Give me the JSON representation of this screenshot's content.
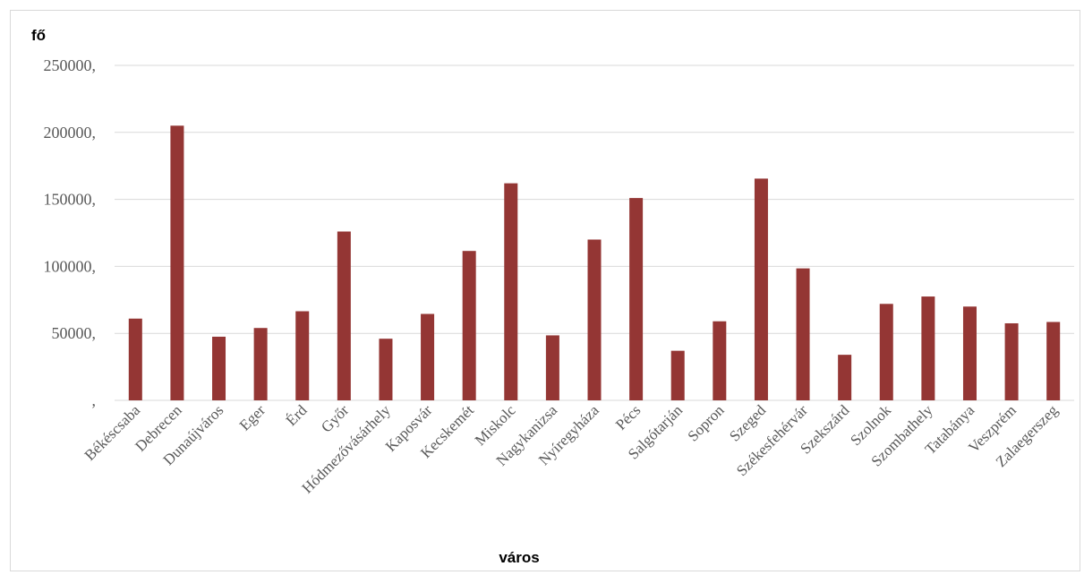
{
  "chart_data": {
    "type": "bar",
    "ylabel": "fő",
    "xlabel": "város",
    "ylim": [
      0,
      250000
    ],
    "yticks": [
      0,
      50000,
      100000,
      150000,
      200000,
      250000
    ],
    "ytick_labels": [
      ",",
      "50000,",
      "100000,",
      "150000,",
      "200000,",
      "250000,"
    ],
    "grid": true,
    "bar_color": "#943634",
    "categories": [
      "Békéscsaba",
      "Debrecen",
      "Dunaújváros",
      "Eger",
      "Érd",
      "Győr",
      "Hódmezővásárhely",
      "Kaposvár",
      "Kecskemét",
      "Miskolc",
      "Nagykanizsa",
      "Nyíregyháza",
      "Pécs",
      "Salgótarján",
      "Sopron",
      "Szeged",
      "Székesfehérvár",
      "Szekszárd",
      "Szolnok",
      "Szombathely",
      "Tatabánya",
      "Veszprém",
      "Zalaegerszeg"
    ],
    "values": [
      61000,
      205000,
      47500,
      54000,
      66500,
      126000,
      46000,
      64500,
      111500,
      162000,
      48500,
      120000,
      151000,
      37000,
      59000,
      165500,
      98500,
      34000,
      72000,
      77500,
      70000,
      57500,
      58500
    ]
  }
}
